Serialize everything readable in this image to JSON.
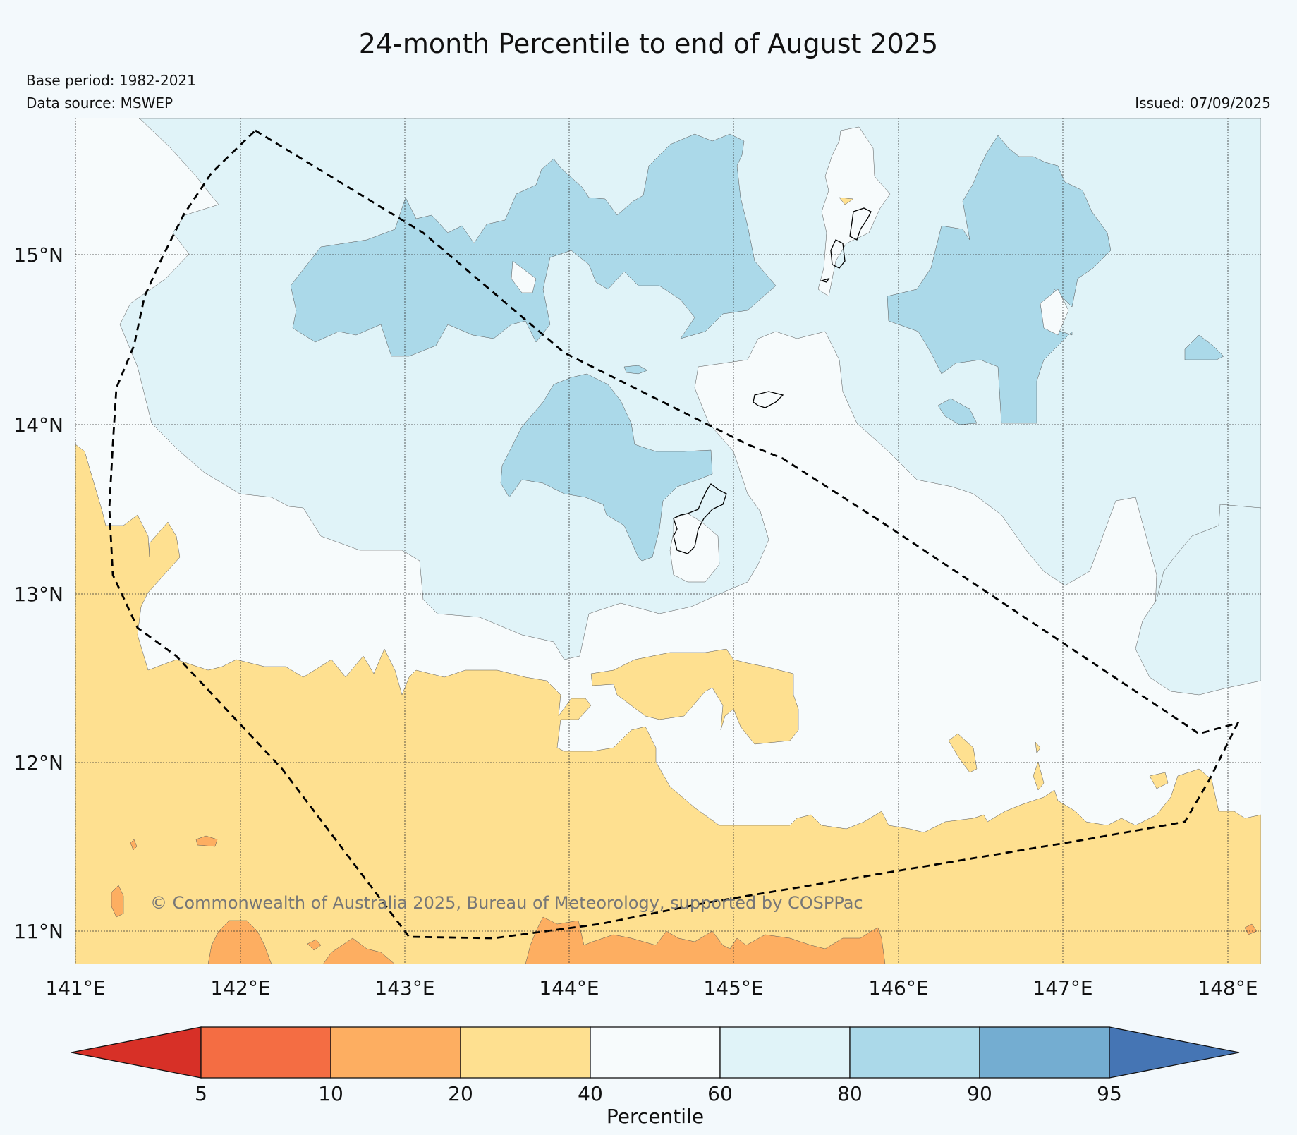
{
  "title": "24-month Percentile to end of August 2025",
  "base_period": "Base period: 1982-2021",
  "data_source": "Data source: MSWEP",
  "issued": "Issued: 07/09/2025",
  "copyright": "© Commonwealth of Australia 2025, Bureau of Meteorology, supported by COSPPac",
  "map": {
    "lon_labels": [
      "141°E",
      "142°E",
      "143°E",
      "144°E",
      "145°E",
      "146°E",
      "147°E",
      "148°E"
    ],
    "lat_labels": [
      "15°N",
      "14°N",
      "13°N",
      "12°N",
      "11°N"
    ],
    "lon_range": [
      141,
      148.2
    ],
    "lat_range": [
      10.8,
      15.8
    ]
  },
  "legend": {
    "label": "Percentile",
    "ticks": [
      "5",
      "10",
      "20",
      "40",
      "60",
      "80",
      "90",
      "95"
    ],
    "bins": [
      {
        "range": "<5",
        "color": "#d73027"
      },
      {
        "range": "5-10",
        "color": "#f46d43"
      },
      {
        "range": "10-20",
        "color": "#fdae61"
      },
      {
        "range": "20-40",
        "color": "#fee090"
      },
      {
        "range": "40-60",
        "color": "#f7fbfc"
      },
      {
        "range": "60-80",
        "color": "#e0f3f8"
      },
      {
        "range": "80-90",
        "color": "#abd9e9"
      },
      {
        "range": "90-95",
        "color": "#74add1"
      },
      {
        "range": ">95",
        "color": "#4575b4"
      }
    ]
  }
}
